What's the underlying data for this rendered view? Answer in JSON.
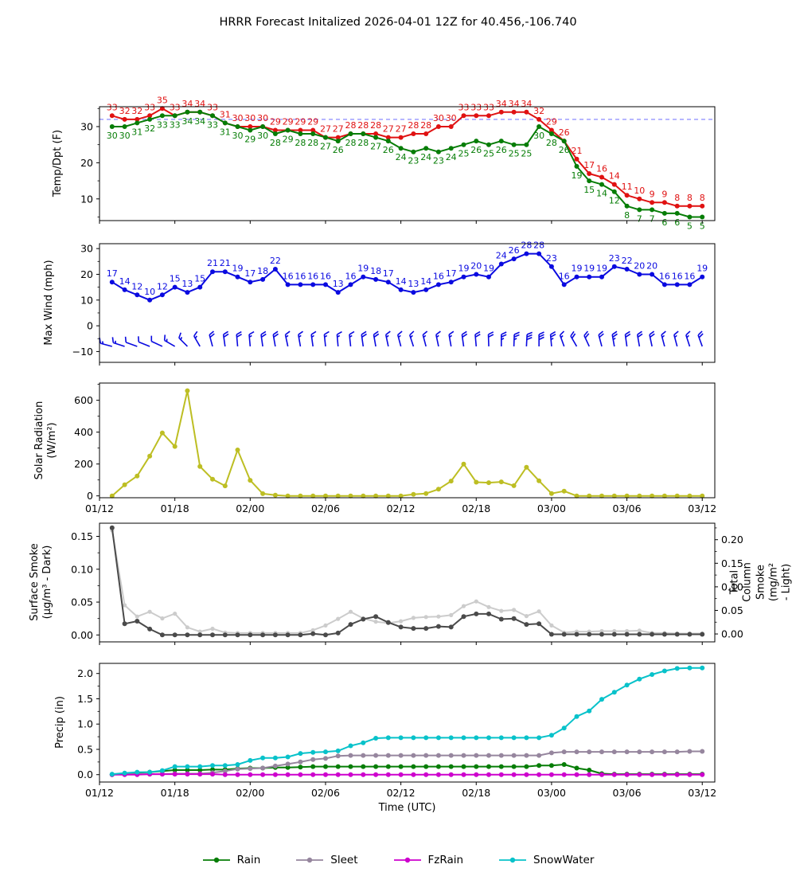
{
  "title": "HRRR Forecast Initalized 2026-04-01 12Z for 40.456,-106.740",
  "time_axis": {
    "xlabel": "Time (UTC)",
    "hours_total": 49,
    "points_start_hour": 1,
    "point_interval_hours": 1,
    "tick_hours": [
      0,
      6,
      12,
      18,
      24,
      30,
      36,
      42,
      48
    ],
    "tick_labels": [
      "01/12",
      "01/18",
      "02/00",
      "02/06",
      "02/12",
      "02/18",
      "03/00",
      "03/06",
      "03/12"
    ]
  },
  "chart_data": [
    {
      "type": "line",
      "ylabel": "Temp/Dpt (F)",
      "ylim": [
        4.0,
        35.5
      ],
      "yticks": [
        10,
        20,
        30
      ],
      "ytick_labels": [
        "10",
        "20",
        "30"
      ],
      "yticks_minor": [
        5,
        15,
        25,
        35
      ],
      "reference_line": {
        "value": 32,
        "style": "dashed",
        "color": "#5a5aff"
      },
      "series": [
        {
          "name": "Temperature",
          "color": "#e01212",
          "label_position": "above",
          "point_labels": true,
          "values": [
            33,
            32,
            32,
            33,
            35,
            33,
            34,
            34,
            33,
            31,
            30,
            30,
            30,
            29,
            29,
            29,
            29,
            27,
            27,
            28,
            28,
            28,
            27,
            27,
            28,
            28,
            30,
            30,
            33,
            33,
            33,
            34,
            34,
            34,
            32,
            29,
            26,
            21,
            17,
            16,
            14,
            11,
            10,
            9,
            9,
            8,
            8,
            8
          ]
        },
        {
          "name": "Dew Point",
          "color": "#067d06",
          "label_position": "below",
          "point_labels": true,
          "values": [
            30,
            30,
            31,
            32,
            33,
            33,
            34,
            34,
            33,
            31,
            30,
            29,
            30,
            28,
            29,
            28,
            28,
            27,
            26,
            28,
            28,
            27,
            26,
            24,
            23,
            24,
            23,
            24,
            25,
            26,
            25,
            26,
            25,
            25,
            30,
            28,
            26,
            19,
            15,
            14,
            12,
            8,
            7,
            7,
            6,
            6,
            5,
            5
          ]
        }
      ]
    },
    {
      "type": "line",
      "ylabel": "Max Wind (mph)",
      "ylim": [
        -14.2,
        31.9
      ],
      "yticks": [
        -10,
        0,
        10,
        20,
        30
      ],
      "ytick_labels": [
        "−10",
        "0",
        "10",
        "20",
        "30"
      ],
      "yticks_minor": [
        -5,
        5,
        15,
        25
      ],
      "series": [
        {
          "name": "Max Wind",
          "color": "#0a0ae0",
          "label_position": "above",
          "point_labels": true,
          "values": [
            17,
            14,
            12,
            10,
            12,
            15,
            13,
            15,
            21,
            21,
            19,
            17,
            18,
            22,
            16,
            16,
            16,
            16,
            13,
            16,
            19,
            18,
            17,
            14,
            13,
            14,
            16,
            17,
            19,
            20,
            19,
            24,
            26,
            28,
            28,
            23,
            16,
            19,
            19,
            19,
            23,
            22,
            20,
            20,
            16,
            16,
            16,
            19
          ]
        }
      ],
      "wind_barbs": {
        "color": "#0a0ae0",
        "base_value": -8,
        "angles_deg": [
          -75,
          -72,
          -70,
          -68,
          -65,
          -60,
          -45,
          -30,
          -15,
          -8,
          -5,
          -5,
          -8,
          -10,
          -12,
          -10,
          -8,
          -6,
          -5,
          -6,
          -8,
          -10,
          -12,
          -15,
          -18,
          -15,
          -12,
          -10,
          -8,
          -5,
          -2,
          0,
          2,
          3,
          0,
          -5,
          -20,
          -30,
          -25,
          -15,
          -10,
          -8,
          -10,
          -12,
          -15,
          -15,
          -18,
          -20
        ]
      }
    },
    {
      "type": "line",
      "ylabel": "Solar Radiation\n(W/m²)",
      "ylim": [
        -11.6,
        708
      ],
      "yticks": [
        0,
        200,
        400,
        600
      ],
      "ytick_labels": [
        "0",
        "200",
        "400",
        "600"
      ],
      "yticks_minor": [
        100,
        300,
        500,
        700
      ],
      "show_x_tick_labels": true,
      "series": [
        {
          "name": "Solar Radiation",
          "color": "#bdbe23",
          "values": [
            0,
            70,
            125,
            250,
            395,
            310,
            660,
            185,
            105,
            63,
            288,
            98,
            14,
            5,
            0,
            0,
            0,
            0,
            0,
            0,
            0,
            0,
            0,
            0,
            10,
            15,
            42,
            93,
            200,
            86,
            83,
            88,
            64,
            180,
            95,
            15,
            30,
            0,
            0,
            0,
            0,
            0,
            0,
            0,
            0,
            0,
            0,
            0
          ]
        }
      ]
    },
    {
      "type": "line",
      "ylabel": "Surface Smoke\n(μg/m³ - Dark)",
      "ylabel_right": "Total Column Smoke\n(mg/m² - Light)",
      "ylim": [
        -0.0105,
        0.17
      ],
      "ylim_right": [
        -0.0168,
        0.235
      ],
      "yticks": [
        0.0,
        0.05,
        0.1,
        0.15
      ],
      "ytick_labels": [
        "0.00",
        "0.05",
        "0.10",
        "0.15"
      ],
      "yticks_minor": [
        0.025,
        0.075,
        0.125
      ],
      "yticks_right": [
        0.0,
        0.05,
        0.1,
        0.15,
        0.2
      ],
      "ytick_labels_right": [
        "0.00",
        "0.05",
        "0.10",
        "0.15",
        "0.20"
      ],
      "yticks_minor_right": [
        0.025,
        0.075,
        0.125,
        0.175,
        0.225
      ],
      "series": [
        {
          "name": "Total Column Smoke",
          "color": "#cccccc",
          "axis": "right",
          "marker_size": 2.6,
          "values": [
            0.22,
            0.061,
            0.037,
            0.047,
            0.033,
            0.043,
            0.014,
            0.005,
            0.011,
            0.003,
            0.002,
            0.002,
            0.002,
            0.002,
            0.002,
            0.002,
            0.008,
            0.018,
            0.032,
            0.047,
            0.033,
            0.026,
            0.023,
            0.027,
            0.034,
            0.036,
            0.037,
            0.04,
            0.059,
            0.069,
            0.057,
            0.049,
            0.051,
            0.038,
            0.048,
            0.018,
            0.003,
            0.005,
            0.005,
            0.006,
            0.006,
            0.006,
            0.007,
            0.002,
            0.002,
            0.001,
            0.001,
            0.001
          ]
        },
        {
          "name": "Surface Smoke",
          "color": "#4a4a4a",
          "axis": "left",
          "values": [
            0.163,
            0.017,
            0.021,
            0.009,
            0,
            0,
            0,
            0,
            0,
            0,
            0,
            0,
            0,
            0,
            0,
            0,
            0.002,
            0,
            0.003,
            0.016,
            0.024,
            0.028,
            0.019,
            0.012,
            0.01,
            0.01,
            0.013,
            0.012,
            0.028,
            0.032,
            0.032,
            0.024,
            0.025,
            0.016,
            0.017,
            0.001,
            0.001,
            0.001,
            0.001,
            0.001,
            0.001,
            0.001,
            0.001,
            0.001,
            0.001,
            0.001,
            0.001,
            0.001
          ]
        }
      ]
    },
    {
      "type": "line",
      "ylabel": "Precip (in)",
      "ylim": [
        -0.146,
        2.2
      ],
      "yticks": [
        0.0,
        0.5,
        1.0,
        1.5,
        2.0
      ],
      "ytick_labels": [
        "0.0",
        "0.5",
        "1.0",
        "1.5",
        "2.0"
      ],
      "yticks_minor": [
        0.25,
        0.75,
        1.25,
        1.75
      ],
      "show_x_tick_labels": true,
      "show_xlabel": true,
      "series": [
        {
          "name": "Rain",
          "color": "#067d06",
          "values": [
            0.0,
            0.02,
            0.04,
            0.05,
            0.07,
            0.09,
            0.09,
            0.09,
            0.1,
            0.1,
            0.12,
            0.13,
            0.13,
            0.14,
            0.14,
            0.15,
            0.16,
            0.16,
            0.16,
            0.16,
            0.16,
            0.16,
            0.16,
            0.16,
            0.16,
            0.16,
            0.16,
            0.16,
            0.16,
            0.16,
            0.16,
            0.16,
            0.16,
            0.16,
            0.18,
            0.18,
            0.2,
            0.13,
            0.09,
            0.02,
            0.01,
            0.01,
            0.01,
            0.01,
            0.01,
            0.01,
            0.01,
            0.01
          ]
        },
        {
          "name": "Sleet",
          "color": "#96869e",
          "values": [
            0.0,
            0.01,
            0.01,
            0.01,
            0.01,
            0.02,
            0.02,
            0.02,
            0.04,
            0.07,
            0.11,
            0.12,
            0.13,
            0.17,
            0.21,
            0.25,
            0.3,
            0.32,
            0.37,
            0.38,
            0.38,
            0.38,
            0.38,
            0.38,
            0.38,
            0.38,
            0.38,
            0.38,
            0.38,
            0.38,
            0.38,
            0.38,
            0.38,
            0.38,
            0.38,
            0.43,
            0.45,
            0.45,
            0.45,
            0.45,
            0.45,
            0.45,
            0.45,
            0.45,
            0.45,
            0.45,
            0.46,
            0.46
          ]
        },
        {
          "name": "FzRain",
          "color": "#cd00cd",
          "values": [
            0,
            0,
            0,
            0.01,
            0.01,
            0.01,
            0.01,
            0.01,
            0.01,
            0,
            0,
            0,
            0,
            0,
            0,
            0,
            0,
            0,
            0,
            0,
            0,
            0,
            0,
            0,
            0,
            0,
            0,
            0,
            0,
            0,
            0,
            0,
            0,
            0,
            0,
            0,
            0,
            0,
            0,
            0,
            0,
            0,
            0,
            0,
            0,
            0,
            0,
            0
          ]
        },
        {
          "name": "SnowWater",
          "color": "#08c2ca",
          "values": [
            0.01,
            0.03,
            0.05,
            0.05,
            0.08,
            0.16,
            0.16,
            0.16,
            0.18,
            0.18,
            0.2,
            0.28,
            0.33,
            0.33,
            0.35,
            0.42,
            0.44,
            0.45,
            0.47,
            0.57,
            0.63,
            0.72,
            0.73,
            0.73,
            0.73,
            0.73,
            0.73,
            0.73,
            0.73,
            0.73,
            0.73,
            0.73,
            0.73,
            0.73,
            0.73,
            0.78,
            0.92,
            1.15,
            1.26,
            1.49,
            1.63,
            1.77,
            1.89,
            1.98,
            2.05,
            2.1,
            2.11,
            2.11
          ]
        }
      ]
    }
  ],
  "legend": {
    "items": [
      {
        "label": "Rain",
        "color": "#067d06"
      },
      {
        "label": "Sleet",
        "color": "#96869e"
      },
      {
        "label": "FzRain",
        "color": "#cd00cd"
      },
      {
        "label": "SnowWater",
        "color": "#08c2ca"
      }
    ]
  }
}
